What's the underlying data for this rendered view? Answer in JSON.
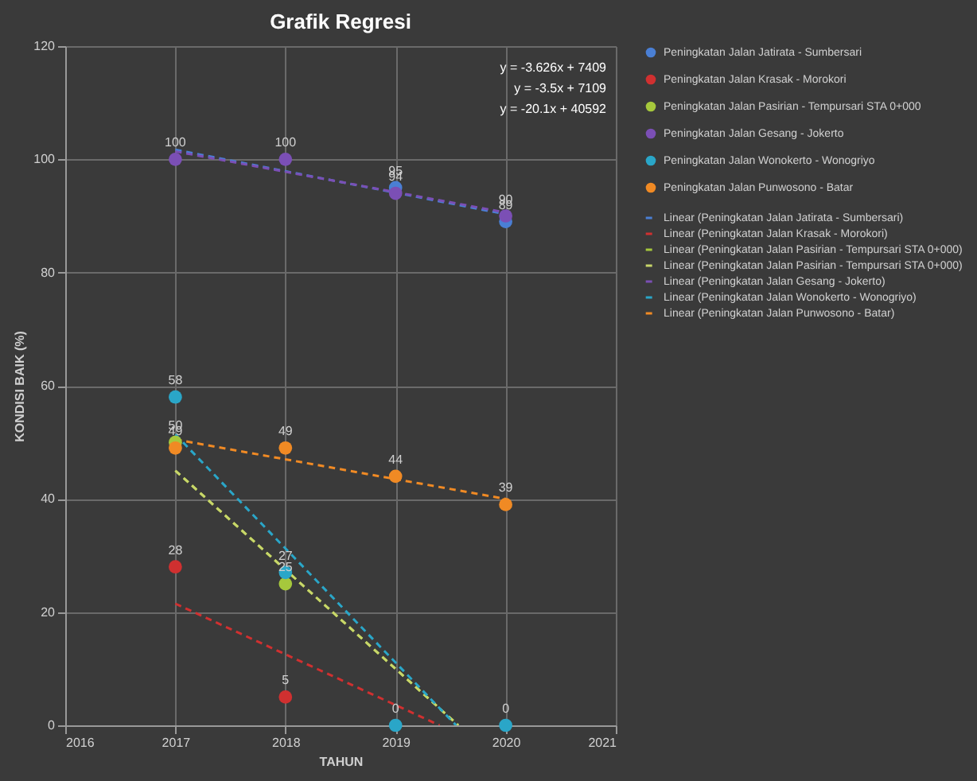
{
  "chart_data": {
    "type": "scatter",
    "title": "Grafik Regresi",
    "xlabel": "TAHUN",
    "ylabel": "KONDISI BAIK (%)",
    "xlim": [
      2016,
      2021
    ],
    "xticks": [
      2016,
      2017,
      2018,
      2019,
      2020,
      2021
    ],
    "ylim": [
      0,
      120
    ],
    "yticks": [
      0,
      20,
      40,
      60,
      80,
      100,
      120
    ],
    "grid": true,
    "legend": "right",
    "series": [
      {
        "name": "Peningkatan Jalan Jatirata - Sumbersari",
        "marker": "circle",
        "color": "#4a7fd4",
        "x": [
          2019,
          2020
        ],
        "values": [
          95,
          89
        ],
        "value_labels": [
          "95",
          "89"
        ]
      },
      {
        "name": "Peningkatan Jalan Krasak - Morokori",
        "marker": "circle",
        "color": "#d03030",
        "x": [
          2017,
          2018
        ],
        "values": [
          28,
          5
        ],
        "value_labels": [
          "28",
          "5"
        ]
      },
      {
        "name": "Peningkatan Jalan Pasirian - Tempursari STA 0+000",
        "marker": "circle",
        "color": "#a6c83c",
        "x": [
          2017,
          2018
        ],
        "values": [
          50,
          25
        ],
        "value_labels": [
          "50",
          "25"
        ]
      },
      {
        "name": "Peningkatan Jalan Gesang - Jokerto",
        "marker": "circle",
        "color": "#7b4fb5",
        "x": [
          2017,
          2018,
          2019,
          2020
        ],
        "values": [
          100,
          100,
          94,
          90
        ],
        "value_labels": [
          "100",
          "100",
          "94",
          "90"
        ]
      },
      {
        "name": "Peningkatan Jalan Wonokerto - Wonogriyo",
        "marker": "circle",
        "color": "#2aa6c8",
        "x": [
          2017,
          2018,
          2019,
          2020
        ],
        "values": [
          58,
          27,
          0,
          0
        ],
        "value_labels": [
          "58",
          "27",
          "0",
          "0"
        ]
      },
      {
        "name": "Peningkatan Jalan Punwosono - Batar",
        "marker": "circle",
        "color": "#f08a24",
        "x": [
          2017,
          2018,
          2019,
          2020
        ],
        "values": [
          49,
          49,
          44,
          39
        ],
        "value_labels": [
          "49",
          "49",
          "44",
          "39"
        ]
      },
      {
        "name": "Linear (Peningkatan Jalan Jatirata - Sumbersari)",
        "type": "line",
        "line_style": "dashed",
        "color": "#4a7fd4",
        "x": [
          2017,
          2020
        ],
        "values": [
          101.7,
          90.3
        ]
      },
      {
        "name": "Linear (Peningkatan Jalan Krasak - Morokori)",
        "type": "line",
        "line_style": "dashed",
        "color": "#d03030",
        "x": [
          2017,
          2019.4
        ],
        "values": [
          21.5,
          0
        ]
      },
      {
        "name": "Linear (Peningkatan Jalan Pasirian - Tempursari STA 0+000)",
        "type": "line",
        "line_style": "dashed",
        "color": "#a6c83c",
        "x": [
          2017,
          2019.57
        ],
        "values": [
          45,
          0
        ]
      },
      {
        "name": "Linear (Peningkatan Jalan Pasirian - Tempursari STA 0+000)",
        "type": "line",
        "line_style": "dashed",
        "color": "#c8d66a",
        "x": [
          2017,
          2019.57
        ],
        "values": [
          45,
          0
        ]
      },
      {
        "name": "Linear (Peningkatan Jalan Gesang - Jokerto)",
        "type": "line",
        "line_style": "dashed",
        "color": "#7b4fb5",
        "x": [
          2017,
          2020
        ],
        "values": [
          101.4,
          90.6
        ]
      },
      {
        "name": "Linear (Peningkatan Jalan Wonokerto - Wonogriyo)",
        "type": "line",
        "line_style": "dashed",
        "color": "#2aa6c8",
        "x": [
          2017,
          2019.55
        ],
        "values": [
          51.4,
          0
        ]
      },
      {
        "name": "Linear (Peningkatan Jalan Punwosono - Batar)",
        "type": "line",
        "line_style": "dashed",
        "color": "#f08a24",
        "x": [
          2017,
          2020
        ],
        "values": [
          50.5,
          40
        ]
      }
    ],
    "annotations": [
      "y = -3.626x + 7409",
      "y = -3.5x + 7109",
      "y = -20.1x + 40592"
    ]
  }
}
